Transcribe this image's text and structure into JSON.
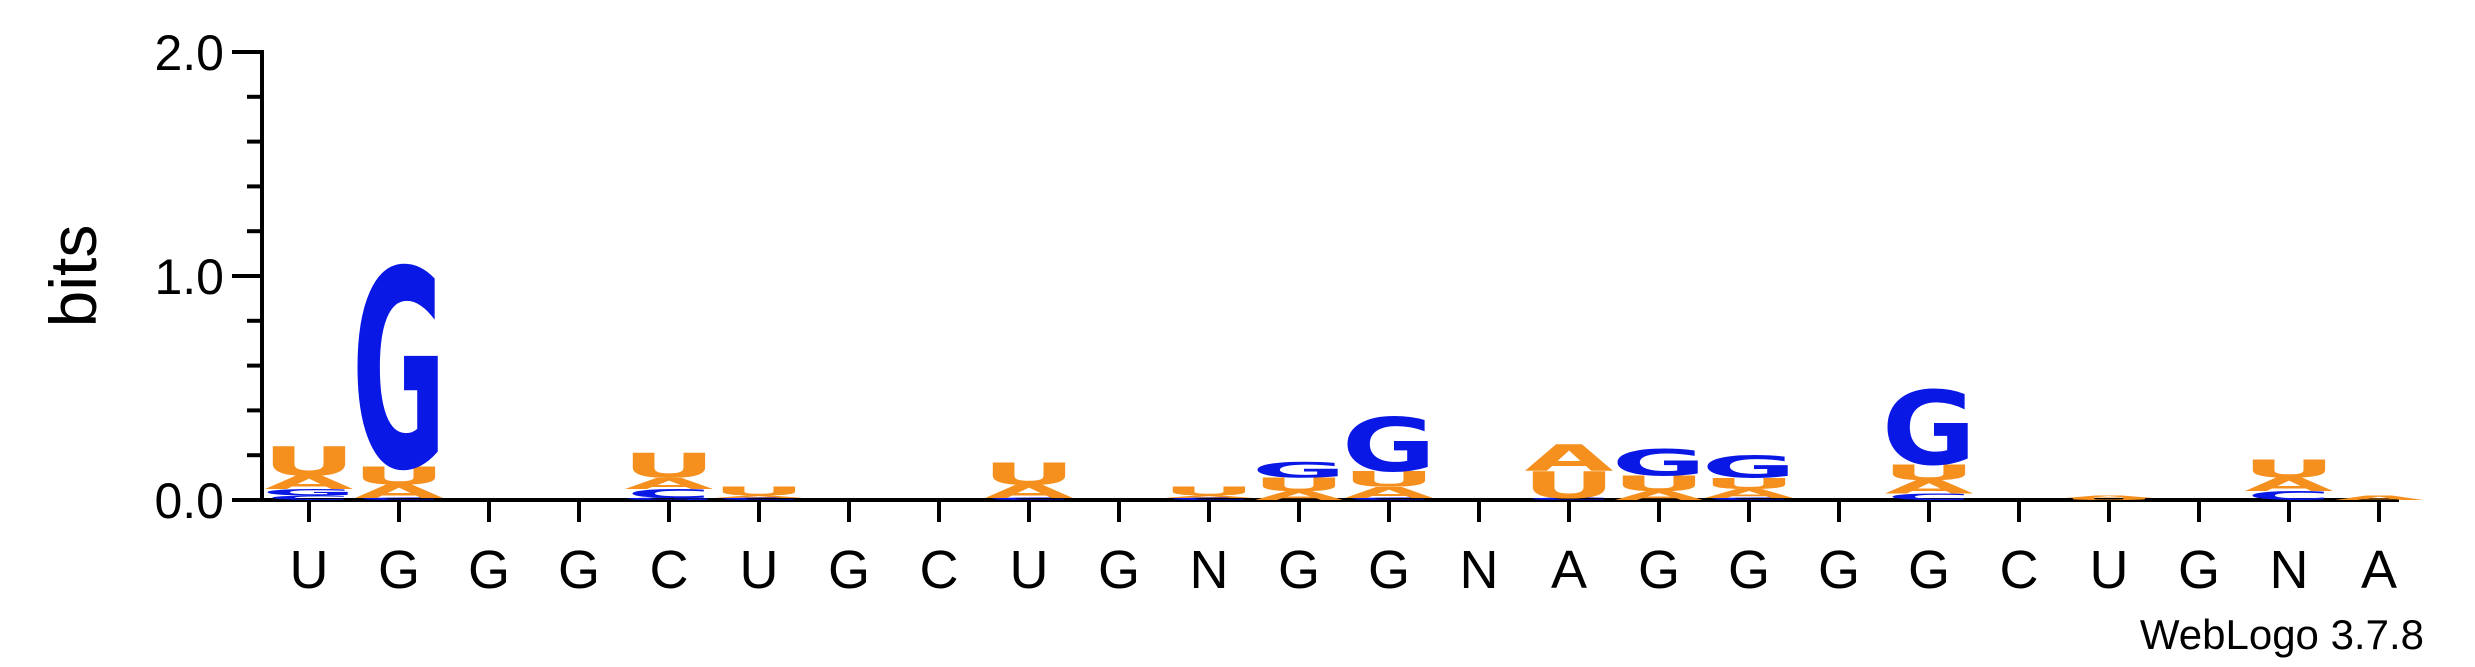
{
  "chart_data": {
    "type": "sequence-logo",
    "ylabel": "bits",
    "ylim": [
      0,
      2.0
    ],
    "yticks": [
      {
        "value": 0.0,
        "label": "0.0"
      },
      {
        "value": 1.0,
        "label": "1.0"
      },
      {
        "value": 2.0,
        "label": "2.0"
      }
    ],
    "positions": [
      "U",
      "G",
      "G",
      "G",
      "C",
      "U",
      "G",
      "C",
      "U",
      "G",
      "N",
      "G",
      "G",
      "N",
      "A",
      "G",
      "G",
      "G",
      "G",
      "C",
      "U",
      "G",
      "N",
      "A"
    ],
    "colors": {
      "A": "#f5901e",
      "U": "#f5901e",
      "G": "#0a18e6",
      "C": "#0a18e6"
    },
    "stacks": [
      [
        {
          "base": "C",
          "bits": 0.02
        },
        {
          "base": "G",
          "bits": 0.03
        },
        {
          "base": "A",
          "bits": 0.06
        },
        {
          "base": "U",
          "bits": 0.13
        }
      ],
      [
        {
          "base": "C",
          "bits": 0.01
        },
        {
          "base": "A",
          "bits": 0.06
        },
        {
          "base": "U",
          "bits": 0.08
        },
        {
          "base": "G",
          "bits": 0.89
        }
      ],
      [],
      [],
      [
        {
          "base": "G",
          "bits": 0.01
        },
        {
          "base": "C",
          "bits": 0.04
        },
        {
          "base": "A",
          "bits": 0.05
        },
        {
          "base": "U",
          "bits": 0.11
        }
      ],
      [
        {
          "base": "C",
          "bits": 0.01
        },
        {
          "base": "A",
          "bits": 0.01
        },
        {
          "base": "U",
          "bits": 0.04
        }
      ],
      [],
      [],
      [
        {
          "base": "C",
          "bits": 0.01
        },
        {
          "base": "A",
          "bits": 0.06
        },
        {
          "base": "U",
          "bits": 0.1
        }
      ],
      [],
      [
        {
          "base": "C",
          "bits": 0.01
        },
        {
          "base": "A",
          "bits": 0.01
        },
        {
          "base": "U",
          "bits": 0.04
        }
      ],
      [
        {
          "base": "A",
          "bits": 0.04
        },
        {
          "base": "U",
          "bits": 0.06
        },
        {
          "base": "G",
          "bits": 0.07
        }
      ],
      [
        {
          "base": "C",
          "bits": 0.01
        },
        {
          "base": "A",
          "bits": 0.05
        },
        {
          "base": "U",
          "bits": 0.07
        },
        {
          "base": "G",
          "bits": 0.24
        }
      ],
      [],
      [
        {
          "base": "C",
          "bits": 0.01
        },
        {
          "base": "U",
          "bits": 0.12
        },
        {
          "base": "A",
          "bits": 0.12
        }
      ],
      [
        {
          "base": "A",
          "bits": 0.04
        },
        {
          "base": "U",
          "bits": 0.07
        },
        {
          "base": "G",
          "bits": 0.12
        }
      ],
      [
        {
          "base": "C",
          "bits": 0.01
        },
        {
          "base": "A",
          "bits": 0.04
        },
        {
          "base": "U",
          "bits": 0.05
        },
        {
          "base": "G",
          "bits": 0.1
        }
      ],
      [],
      [
        {
          "base": "C",
          "bits": 0.03
        },
        {
          "base": "A",
          "bits": 0.06
        },
        {
          "base": "U",
          "bits": 0.07
        },
        {
          "base": "G",
          "bits": 0.33
        }
      ],
      [],
      [
        {
          "base": "U",
          "bits": 0.01
        },
        {
          "base": "A",
          "bits": 0.01
        }
      ],
      [],
      [
        {
          "base": "C",
          "bits": 0.04
        },
        {
          "base": "A",
          "bits": 0.06
        },
        {
          "base": "U",
          "bits": 0.08
        }
      ],
      [
        {
          "base": "A",
          "bits": 0.02
        }
      ]
    ],
    "credit": "WebLogo 3.7.8"
  }
}
